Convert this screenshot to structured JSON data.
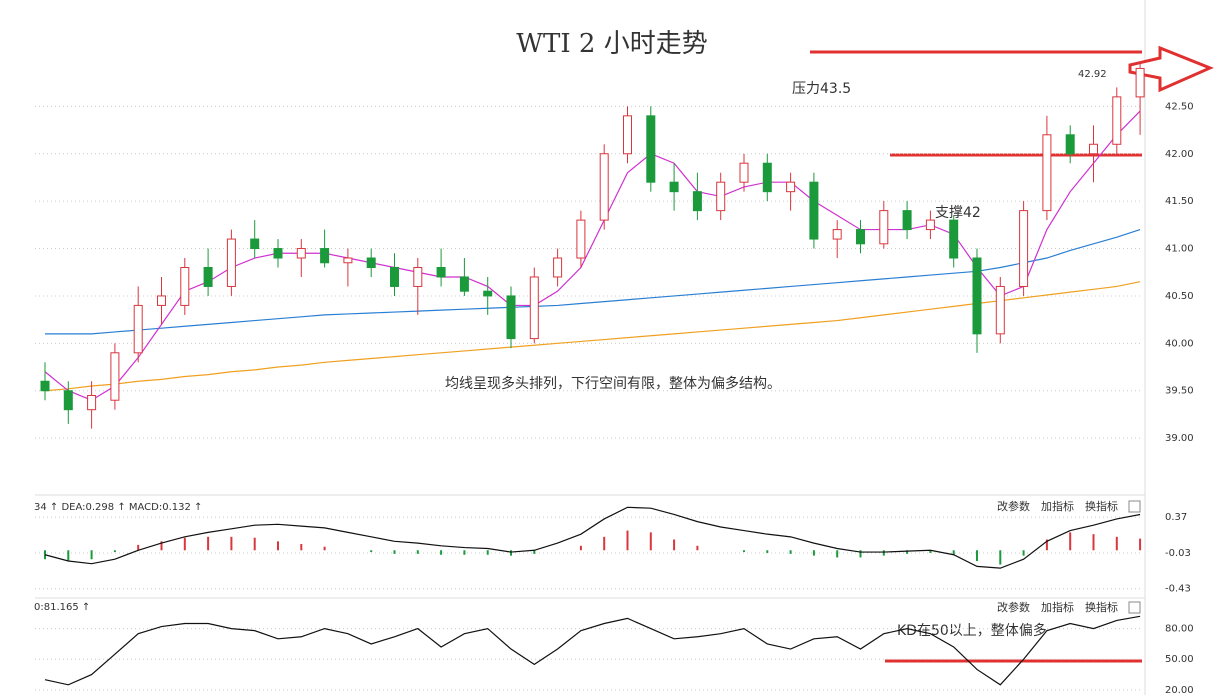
{
  "title": "WTI 2 小时走势",
  "toolbar": [
    "改参数",
    "加指标",
    "换指标"
  ],
  "chart_data": [
    {
      "type": "candlestick",
      "ylim": [
        38.4,
        43.2
      ],
      "yticks": [
        {
          "value": 42.5,
          "label": "42.50"
        },
        {
          "value": 42,
          "label": "42.00"
        },
        {
          "value": 41.5,
          "label": "41.50"
        },
        {
          "value": 41,
          "label": "41.00"
        },
        {
          "value": 40.5,
          "label": "40.50"
        },
        {
          "value": 40,
          "label": "40.00"
        },
        {
          "value": 39.5,
          "label": "39.50"
        },
        {
          "value": 39,
          "label": "39.00"
        }
      ],
      "up_color": "#d9363e",
      "down_color": "#1a9a3a",
      "ohlc": [
        [
          39.6,
          39.8,
          39.4,
          39.5
        ],
        [
          39.5,
          39.6,
          39.15,
          39.3
        ],
        [
          39.3,
          39.6,
          39.1,
          39.45
        ],
        [
          39.4,
          40.0,
          39.3,
          39.9
        ],
        [
          39.9,
          40.6,
          39.8,
          40.4
        ],
        [
          40.4,
          40.7,
          40.2,
          40.5
        ],
        [
          40.4,
          40.9,
          40.3,
          40.8
        ],
        [
          40.8,
          41.0,
          40.5,
          40.6
        ],
        [
          40.6,
          41.2,
          40.5,
          41.1
        ],
        [
          41.1,
          41.3,
          40.9,
          41.0
        ],
        [
          41.0,
          41.1,
          40.8,
          40.9
        ],
        [
          40.9,
          41.1,
          40.7,
          41.0
        ],
        [
          41.0,
          41.2,
          40.8,
          40.85
        ],
        [
          40.85,
          41.0,
          40.6,
          40.9
        ],
        [
          40.9,
          41.0,
          40.7,
          40.8
        ],
        [
          40.8,
          40.95,
          40.5,
          40.6
        ],
        [
          40.6,
          40.9,
          40.3,
          40.8
        ],
        [
          40.8,
          41.0,
          40.6,
          40.7
        ],
        [
          40.7,
          40.9,
          40.5,
          40.55
        ],
        [
          40.55,
          40.7,
          40.3,
          40.5
        ],
        [
          40.5,
          40.6,
          39.95,
          40.05
        ],
        [
          40.05,
          40.8,
          40.0,
          40.7
        ],
        [
          40.7,
          41.0,
          40.6,
          40.9
        ],
        [
          40.9,
          41.4,
          40.8,
          41.3
        ],
        [
          41.3,
          42.1,
          41.2,
          42.0
        ],
        [
          42.0,
          42.5,
          41.9,
          42.4
        ],
        [
          42.4,
          42.5,
          41.6,
          41.7
        ],
        [
          41.7,
          41.9,
          41.4,
          41.6
        ],
        [
          41.6,
          41.8,
          41.3,
          41.4
        ],
        [
          41.4,
          41.8,
          41.3,
          41.7
        ],
        [
          41.7,
          42.0,
          41.6,
          41.9
        ],
        [
          41.9,
          42.0,
          41.5,
          41.6
        ],
        [
          41.6,
          41.8,
          41.4,
          41.7
        ],
        [
          41.7,
          41.8,
          41.0,
          41.1
        ],
        [
          41.1,
          41.3,
          40.9,
          41.2
        ],
        [
          41.2,
          41.3,
          40.95,
          41.05
        ],
        [
          41.05,
          41.5,
          41.0,
          41.4
        ],
        [
          41.4,
          41.5,
          41.1,
          41.2
        ],
        [
          41.2,
          41.4,
          41.1,
          41.3
        ],
        [
          41.3,
          41.35,
          40.8,
          40.9
        ],
        [
          40.9,
          41.0,
          39.9,
          40.1
        ],
        [
          40.1,
          40.7,
          40.0,
          40.6
        ],
        [
          40.6,
          41.5,
          40.5,
          41.4
        ],
        [
          41.4,
          42.4,
          41.3,
          42.2
        ],
        [
          42.2,
          42.3,
          41.9,
          42.0
        ],
        [
          42.0,
          42.3,
          41.7,
          42.1
        ],
        [
          42.1,
          42.7,
          42.0,
          42.6
        ],
        [
          42.6,
          42.95,
          42.2,
          42.9
        ]
      ],
      "lines": [
        {
          "color": "#f0a020",
          "values": [
            39.5,
            39.52,
            39.55,
            39.57,
            39.6,
            39.62,
            39.65,
            39.67,
            39.7,
            39.72,
            39.75,
            39.77,
            39.8,
            39.82,
            39.84,
            39.86,
            39.88,
            39.9,
            39.92,
            39.94,
            39.96,
            39.98,
            40.0,
            40.02,
            40.04,
            40.06,
            40.08,
            40.1,
            40.12,
            40.14,
            40.16,
            40.18,
            40.2,
            40.22,
            40.24,
            40.27,
            40.3,
            40.33,
            40.36,
            40.39,
            40.42,
            40.45,
            40.48,
            40.51,
            40.54,
            40.57,
            40.6,
            40.65
          ]
        },
        {
          "color": "#2a7fd4",
          "values": [
            40.1,
            40.1,
            40.1,
            40.12,
            40.14,
            40.16,
            40.18,
            40.2,
            40.22,
            40.24,
            40.26,
            40.28,
            40.3,
            40.31,
            40.32,
            40.33,
            40.34,
            40.35,
            40.36,
            40.37,
            40.38,
            40.39,
            40.4,
            40.42,
            40.44,
            40.46,
            40.48,
            40.5,
            40.52,
            40.54,
            40.56,
            40.58,
            40.6,
            40.62,
            40.64,
            40.66,
            40.68,
            40.7,
            40.72,
            40.74,
            40.76,
            40.8,
            40.85,
            40.9,
            40.98,
            41.05,
            41.12,
            41.2
          ]
        },
        {
          "color": "#d030d0",
          "values": [
            39.7,
            39.5,
            39.4,
            39.55,
            39.85,
            40.2,
            40.55,
            40.65,
            40.8,
            40.9,
            40.95,
            40.95,
            40.95,
            40.9,
            40.85,
            40.8,
            40.75,
            40.7,
            40.7,
            40.6,
            40.4,
            40.4,
            40.55,
            40.8,
            41.3,
            41.8,
            42.0,
            41.9,
            41.6,
            41.55,
            41.65,
            41.7,
            41.7,
            41.5,
            41.35,
            41.2,
            41.2,
            41.2,
            41.25,
            41.15,
            40.8,
            40.5,
            40.6,
            41.2,
            41.6,
            41.9,
            42.2,
            42.45
          ]
        }
      ],
      "last_price": 42.92,
      "annotations": [
        "压力43.5",
        "支撑42",
        "均线呈现多头排列，下行空间有限，整体为偏多结构。"
      ]
    },
    {
      "type": "macd",
      "header": "34 ↑ DEA:0.298 ↑ MACD:0.132 ↑",
      "ylim": [
        -0.5,
        0.45
      ],
      "yticks": [
        0.37,
        -0.03,
        -0.43
      ],
      "histogram": [
        -0.1,
        -0.12,
        -0.1,
        -0.02,
        0.06,
        0.1,
        0.14,
        0.15,
        0.15,
        0.14,
        0.1,
        0.07,
        0.04,
        0.0,
        -0.02,
        -0.04,
        -0.04,
        -0.05,
        -0.05,
        -0.05,
        -0.06,
        -0.04,
        0.0,
        0.05,
        0.15,
        0.22,
        0.2,
        0.12,
        0.05,
        0.0,
        -0.02,
        -0.03,
        -0.04,
        -0.06,
        -0.08,
        -0.08,
        -0.06,
        -0.04,
        -0.03,
        -0.05,
        -0.12,
        -0.16,
        -0.06,
        0.12,
        0.2,
        0.18,
        0.15,
        0.13
      ],
      "line": {
        "color": "#111111",
        "values": [
          -0.05,
          -0.12,
          -0.15,
          -0.1,
          0.0,
          0.08,
          0.15,
          0.2,
          0.24,
          0.28,
          0.29,
          0.27,
          0.25,
          0.2,
          0.15,
          0.1,
          0.08,
          0.05,
          0.03,
          0.02,
          -0.02,
          0.0,
          0.08,
          0.18,
          0.35,
          0.48,
          0.47,
          0.4,
          0.32,
          0.26,
          0.22,
          0.18,
          0.15,
          0.08,
          0.02,
          -0.02,
          -0.02,
          -0.01,
          0.0,
          -0.05,
          -0.18,
          -0.2,
          -0.1,
          0.1,
          0.22,
          0.28,
          0.35,
          0.4
        ]
      }
    },
    {
      "type": "kd",
      "header": "0:81.165 ↑",
      "ylim": [
        15,
        108
      ],
      "yticks": [
        {
          "value": 80,
          "label": "80.00"
        },
        {
          "value": 50,
          "label": "50.00"
        },
        {
          "value": 20,
          "label": "20.00"
        }
      ],
      "line": {
        "color": "#111111",
        "values": [
          30,
          25,
          35,
          55,
          75,
          82,
          85,
          85,
          80,
          78,
          70,
          72,
          80,
          75,
          65,
          72,
          80,
          62,
          75,
          80,
          60,
          45,
          60,
          78,
          85,
          90,
          80,
          70,
          72,
          75,
          80,
          65,
          60,
          70,
          72,
          60,
          75,
          80,
          75,
          62,
          40,
          25,
          50,
          78,
          85,
          80,
          88,
          92
        ]
      },
      "annotation": "KD在50以上，整体偏多"
    }
  ]
}
